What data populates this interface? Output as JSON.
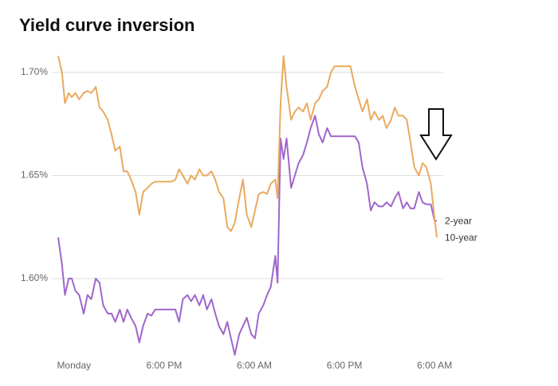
{
  "chart_data": {
    "type": "line",
    "title": "Yield curve inversion",
    "x": [
      -2.1,
      -1.6,
      -1.2,
      -0.7,
      -0.3,
      0.2,
      0.7,
      1.3,
      1.8,
      2.3,
      2.9,
      3.4,
      3.9,
      4.5,
      5.0,
      5.5,
      6.1,
      6.6,
      7.1,
      7.6,
      8.2,
      8.7,
      9.2,
      9.8,
      10.3,
      10.8,
      11.4,
      11.9,
      12.4,
      13.0,
      13.5,
      14.0,
      14.5,
      15.1,
      15.6,
      16.1,
      16.7,
      17.2,
      17.7,
      18.3,
      18.8,
      19.3,
      19.9,
      20.4,
      20.9,
      21.4,
      22.0,
      22.5,
      23.0,
      23.6,
      24.1,
      24.6,
      25.2,
      25.7,
      26.2,
      26.8,
      27.1,
      27.5,
      27.9,
      28.3,
      28.9,
      29.4,
      29.9,
      30.5,
      31.0,
      31.5,
      32.1,
      32.6,
      33.1,
      33.7,
      34.2,
      34.7,
      35.2,
      35.8,
      36.3,
      36.8,
      37.4,
      37.9,
      38.4,
      39.0,
      39.5,
      40.0,
      40.6,
      41.1,
      41.6,
      42.2,
      42.7,
      43.2,
      43.8,
      44.3,
      44.8,
      45.3,
      45.9,
      46.4,
      46.9,
      47.5,
      48.0,
      48.3
    ],
    "series": [
      {
        "name": "2-year",
        "color": "#a066cc",
        "values": [
          1.62,
          1.607,
          1.592,
          1.6,
          1.6,
          1.594,
          1.592,
          1.583,
          1.592,
          1.59,
          1.6,
          1.598,
          1.587,
          1.583,
          1.583,
          1.579,
          1.585,
          1.579,
          1.585,
          1.581,
          1.577,
          1.569,
          1.577,
          1.583,
          1.582,
          1.585,
          1.585,
          1.585,
          1.585,
          1.585,
          1.585,
          1.579,
          1.59,
          1.592,
          1.589,
          1.592,
          1.587,
          1.592,
          1.585,
          1.59,
          1.583,
          1.577,
          1.573,
          1.579,
          1.571,
          1.563,
          1.573,
          1.577,
          1.581,
          1.573,
          1.571,
          1.583,
          1.587,
          1.592,
          1.596,
          1.611,
          1.598,
          1.668,
          1.658,
          1.668,
          1.644,
          1.65,
          1.656,
          1.66,
          1.666,
          1.673,
          1.679,
          1.67,
          1.666,
          1.673,
          1.669,
          1.669,
          1.669,
          1.669,
          1.669,
          1.669,
          1.669,
          1.666,
          1.654,
          1.646,
          1.633,
          1.637,
          1.635,
          1.635,
          1.637,
          1.635,
          1.639,
          1.642,
          1.634,
          1.637,
          1.634,
          1.634,
          1.642,
          1.637,
          1.636,
          1.636,
          1.628,
          1.628
        ]
      },
      {
        "name": "10-year",
        "color": "#e9aa5e",
        "values": [
          1.708,
          1.7,
          1.685,
          1.69,
          1.688,
          1.69,
          1.687,
          1.69,
          1.691,
          1.69,
          1.693,
          1.683,
          1.681,
          1.677,
          1.67,
          1.662,
          1.664,
          1.652,
          1.652,
          1.648,
          1.642,
          1.631,
          1.642,
          1.644,
          1.646,
          1.647,
          1.647,
          1.647,
          1.647,
          1.647,
          1.648,
          1.653,
          1.65,
          1.646,
          1.65,
          1.648,
          1.653,
          1.65,
          1.65,
          1.652,
          1.648,
          1.642,
          1.639,
          1.625,
          1.623,
          1.627,
          1.639,
          1.648,
          1.631,
          1.625,
          1.633,
          1.641,
          1.642,
          1.641,
          1.646,
          1.648,
          1.639,
          1.685,
          1.708,
          1.693,
          1.677,
          1.681,
          1.683,
          1.681,
          1.685,
          1.677,
          1.685,
          1.687,
          1.691,
          1.693,
          1.7,
          1.703,
          1.703,
          1.703,
          1.703,
          1.703,
          1.693,
          1.687,
          1.681,
          1.687,
          1.677,
          1.681,
          1.677,
          1.679,
          1.673,
          1.677,
          1.683,
          1.679,
          1.679,
          1.677,
          1.666,
          1.654,
          1.65,
          1.656,
          1.654,
          1.646,
          1.629,
          1.62
        ]
      }
    ],
    "xlim": [
      -2.1,
      48.3
    ],
    "xticks": [
      {
        "value": 0,
        "label": "Monday"
      },
      {
        "value": 12,
        "label": "6:00 PM"
      },
      {
        "value": 24,
        "label": "6:00 AM"
      },
      {
        "value": 36,
        "label": "6:00 PM"
      },
      {
        "value": 48,
        "label": "6:00 AM"
      }
    ],
    "ylim": [
      1.56,
      1.71
    ],
    "yticks": [
      {
        "value": 1.6,
        "label": "1.60%"
      },
      {
        "value": 1.65,
        "label": "1.65%"
      },
      {
        "value": 1.7,
        "label": "1.70%"
      }
    ],
    "grid": true
  }
}
